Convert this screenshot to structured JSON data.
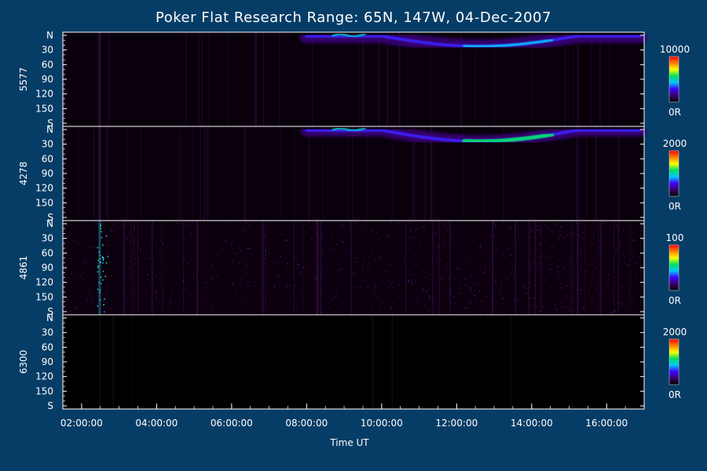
{
  "chart_data": {
    "type": "heatmap",
    "title": "Poker Flat Research Range: 65N, 147W, 04-Dec-2007",
    "xlabel": "Time UT",
    "x_range": [
      "01:30:00",
      "17:00:00"
    ],
    "x_ticks": [
      "02:00:00",
      "04:00:00",
      "06:00:00",
      "08:00:00",
      "10:00:00",
      "12:00:00",
      "14:00:00",
      "16:00:00"
    ],
    "y_ticks": [
      "N",
      "30",
      "60",
      "90",
      "120",
      "150",
      "S"
    ],
    "colorscale": [
      "#000000",
      "#3a006a",
      "#3c00ff",
      "#00c8ff",
      "#00e060",
      "#ffff00",
      "#ff8000",
      "#ff0000"
    ],
    "panels": [
      {
        "channel": "5577",
        "cbar_max": "10000",
        "cbar_min": "0R"
      },
      {
        "channel": "4278",
        "cbar_max": "2000",
        "cbar_min": "0R"
      },
      {
        "channel": "4861",
        "cbar_max": "100",
        "cbar_min": "0R"
      },
      {
        "channel": "6300",
        "cbar_max": "2000",
        "cbar_min": "0R"
      }
    ]
  }
}
